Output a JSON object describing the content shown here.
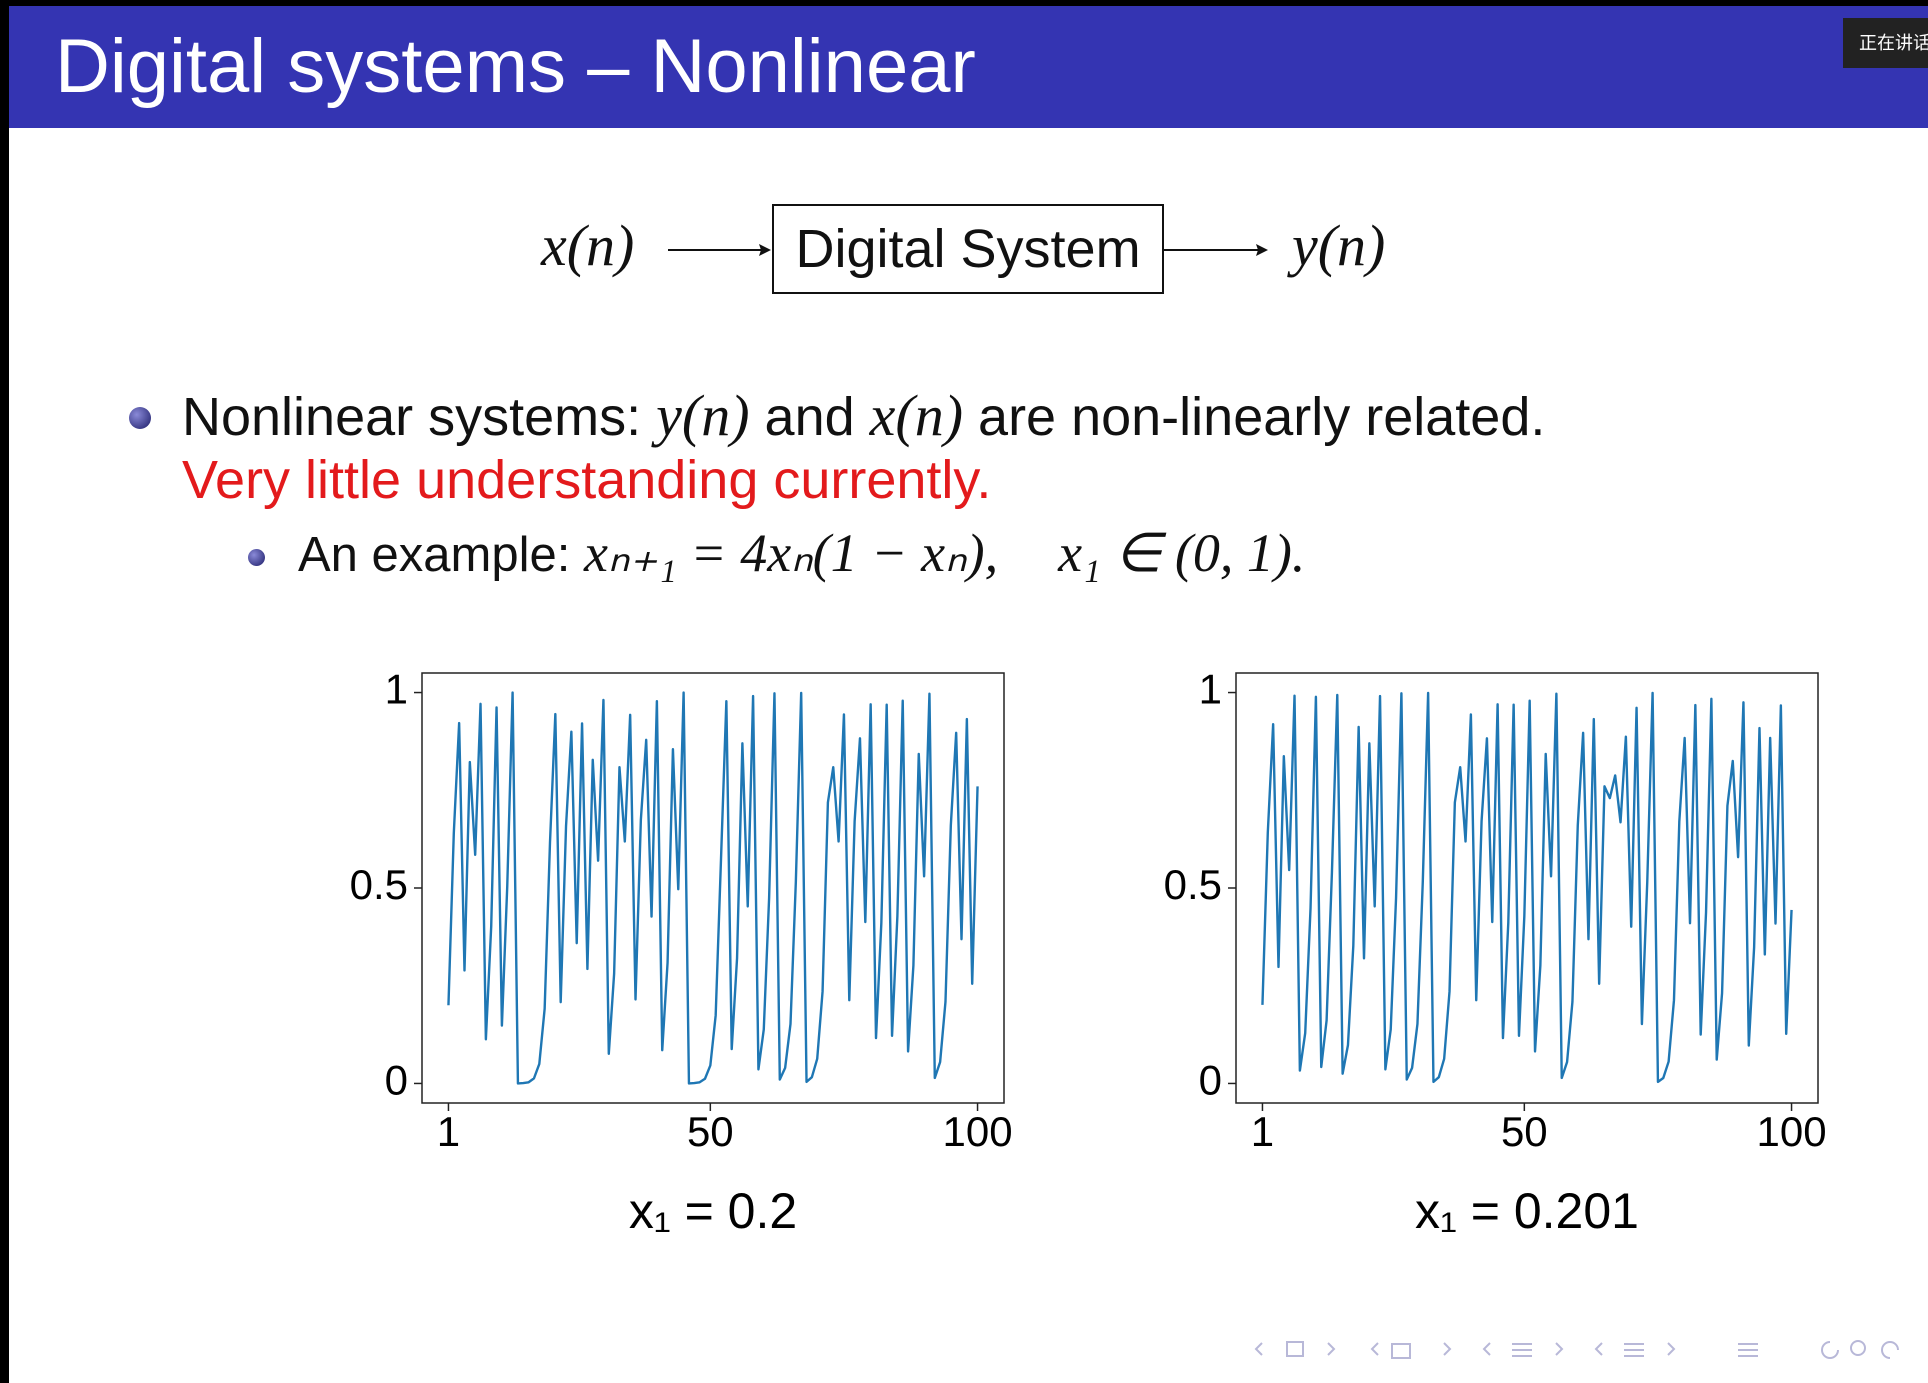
{
  "header": {
    "title": "Digital systems – Nonlinear",
    "badge": "正在讲话"
  },
  "diagram": {
    "input": "x(n)",
    "block": "Digital System",
    "output": "y(n)"
  },
  "bullet": {
    "parts": [
      "Nonlinear systems: ",
      "y(n)",
      " and ",
      "x(n)",
      " are non-linearly related."
    ],
    "note": "Very little understanding currently.",
    "sub": {
      "label": "An example: ",
      "formula": "xₙ₊₁ = 4xₙ(1 − xₙ),",
      "condition": "x₁ ∈ (0, 1)."
    }
  },
  "chart_data": [
    {
      "type": "line",
      "xlabel": "x₁ = 0.2",
      "color": "#1f77b4",
      "x": [
        1,
        2,
        3,
        4,
        5,
        6,
        7,
        8,
        9,
        10,
        11,
        12,
        13,
        14,
        15,
        16,
        17,
        18,
        19,
        20,
        21,
        22,
        23,
        24,
        25,
        26,
        27,
        28,
        29,
        30,
        31,
        32,
        33,
        34,
        35,
        36,
        37,
        38,
        39,
        40,
        41,
        42,
        43,
        44,
        45,
        46,
        47,
        48,
        49,
        50,
        51,
        52,
        53,
        54,
        55,
        56,
        57,
        58,
        59,
        60,
        61,
        62,
        63,
        64,
        65,
        66,
        67,
        68,
        69,
        70,
        71,
        72,
        73,
        74,
        75,
        76,
        77,
        78,
        79,
        80,
        81,
        82,
        83,
        84,
        85,
        86,
        87,
        88,
        89,
        90,
        91,
        92,
        93,
        94,
        95,
        96,
        97,
        98,
        99,
        100
      ],
      "values": [
        0.2,
        0.64,
        0.922,
        0.289,
        0.822,
        0.585,
        0.971,
        0.113,
        0.402,
        0.962,
        0.148,
        0.504,
        1.0,
        0.0,
        0.001,
        0.003,
        0.013,
        0.05,
        0.191,
        0.617,
        0.945,
        0.208,
        0.658,
        0.9,
        0.359,
        0.921,
        0.293,
        0.828,
        0.57,
        0.981,
        0.076,
        0.281,
        0.809,
        0.619,
        0.943,
        0.215,
        0.674,
        0.879,
        0.427,
        0.978,
        0.085,
        0.309,
        0.855,
        0.497,
        1.0,
        0.0,
        0.001,
        0.003,
        0.012,
        0.046,
        0.174,
        0.575,
        0.978,
        0.088,
        0.32,
        0.87,
        0.453,
        0.991,
        0.036,
        0.138,
        0.475,
        0.998,
        0.01,
        0.04,
        0.152,
        0.516,
        0.999,
        0.004,
        0.016,
        0.063,
        0.235,
        0.719,
        0.809,
        0.619,
        0.944,
        0.213,
        0.671,
        0.883,
        0.413,
        0.97,
        0.116,
        0.411,
        0.969,
        0.122,
        0.428,
        0.979,
        0.082,
        0.302,
        0.843,
        0.53,
        0.997,
        0.014,
        0.055,
        0.209,
        0.66,
        0.897,
        0.369,
        0.932,
        0.255,
        0.76
      ],
      "xlim": [
        -3.95,
        104.95
      ],
      "ylim": [
        -0.05,
        1.05
      ],
      "xticks": [
        1,
        50,
        100
      ],
      "yticks": [
        0,
        0.5,
        1
      ]
    },
    {
      "type": "line",
      "xlabel": "x₁ = 0.201",
      "color": "#1f77b4",
      "x": [
        1,
        2,
        3,
        4,
        5,
        6,
        7,
        8,
        9,
        10,
        11,
        12,
        13,
        14,
        15,
        16,
        17,
        18,
        19,
        20,
        21,
        22,
        23,
        24,
        25,
        26,
        27,
        28,
        29,
        30,
        31,
        32,
        33,
        34,
        35,
        36,
        37,
        38,
        39,
        40,
        41,
        42,
        43,
        44,
        45,
        46,
        47,
        48,
        49,
        50,
        51,
        52,
        53,
        54,
        55,
        56,
        57,
        58,
        59,
        60,
        61,
        62,
        63,
        64,
        65,
        66,
        67,
        68,
        69,
        70,
        71,
        72,
        73,
        74,
        75,
        76,
        77,
        78,
        79,
        80,
        81,
        82,
        83,
        84,
        85,
        86,
        87,
        88,
        89,
        90,
        91,
        92,
        93,
        94,
        95,
        96,
        97,
        98,
        99,
        100
      ],
      "values": [
        0.201,
        0.642,
        0.919,
        0.298,
        0.837,
        0.546,
        0.992,
        0.033,
        0.129,
        0.449,
        0.989,
        0.042,
        0.161,
        0.54,
        0.994,
        0.025,
        0.098,
        0.352,
        0.912,
        0.32,
        0.87,
        0.453,
        0.991,
        0.036,
        0.138,
        0.475,
        0.998,
        0.01,
        0.04,
        0.152,
        0.516,
        0.999,
        0.004,
        0.016,
        0.063,
        0.235,
        0.719,
        0.809,
        0.619,
        0.944,
        0.213,
        0.671,
        0.883,
        0.413,
        0.97,
        0.116,
        0.411,
        0.969,
        0.122,
        0.428,
        0.979,
        0.082,
        0.302,
        0.843,
        0.53,
        0.997,
        0.014,
        0.055,
        0.209,
        0.66,
        0.897,
        0.369,
        0.932,
        0.255,
        0.76,
        0.73,
        0.788,
        0.668,
        0.887,
        0.401,
        0.961,
        0.152,
        0.515,
        0.999,
        0.004,
        0.014,
        0.056,
        0.213,
        0.67,
        0.884,
        0.41,
        0.968,
        0.125,
        0.438,
        0.984,
        0.061,
        0.231,
        0.71,
        0.825,
        0.579,
        0.975,
        0.097,
        0.349,
        0.909,
        0.33,
        0.884,
        0.409,
        0.967,
        0.127,
        0.444
      ],
      "xlim": [
        -3.95,
        104.95
      ],
      "ylim": [
        -0.05,
        1.05
      ],
      "xticks": [
        1,
        50,
        100
      ],
      "yticks": [
        0,
        0.5,
        1
      ]
    }
  ]
}
